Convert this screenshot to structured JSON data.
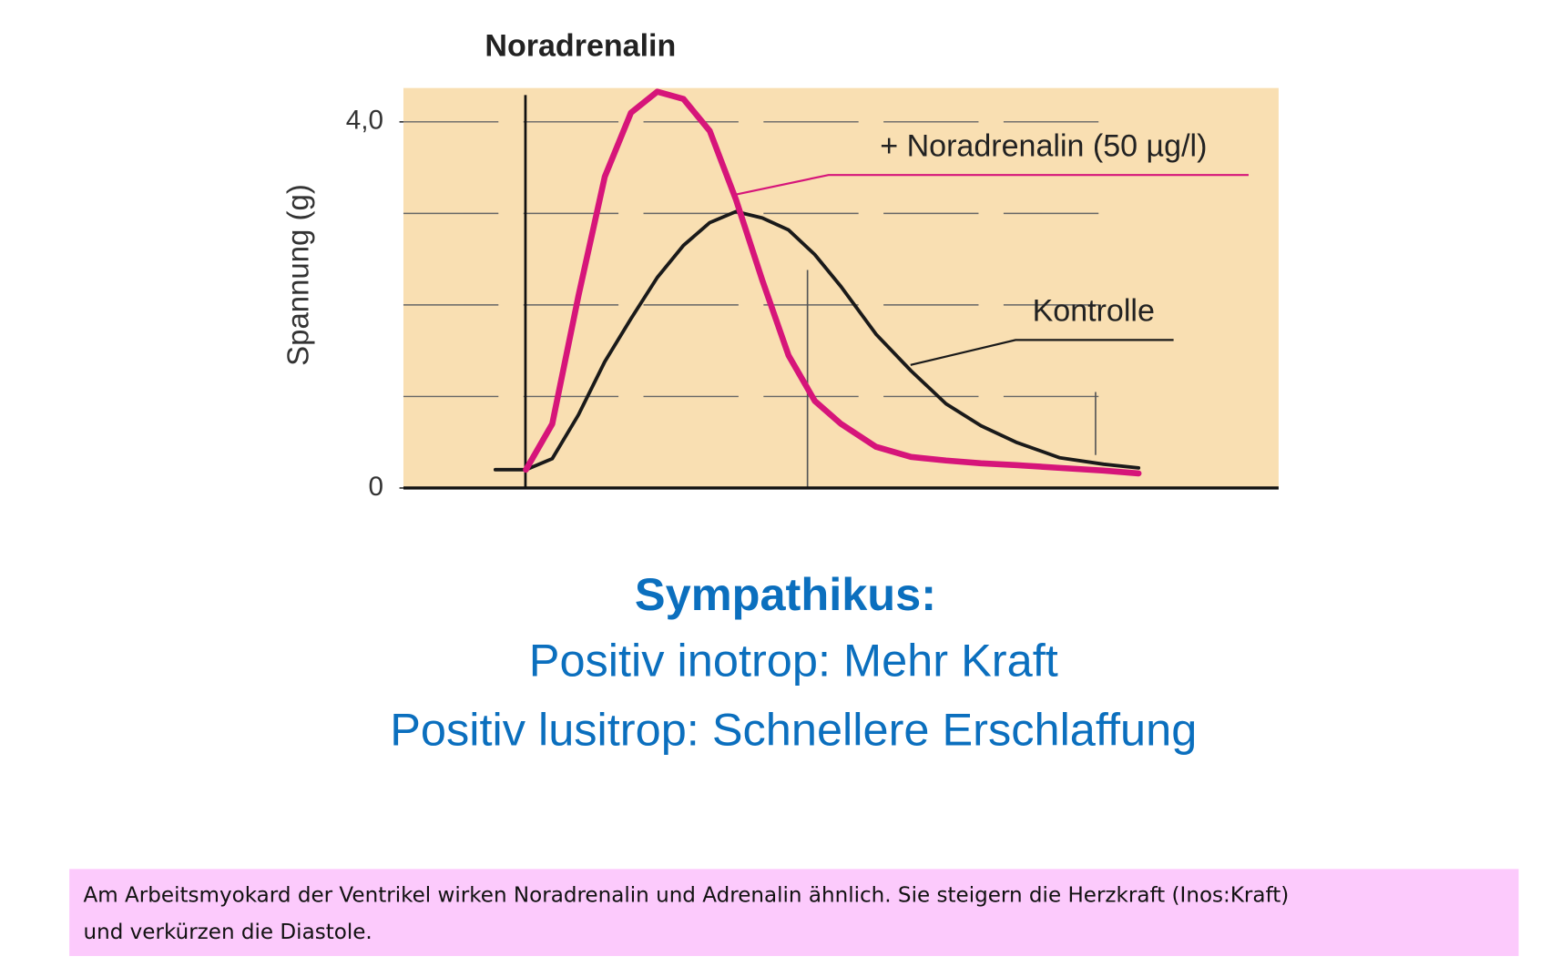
{
  "chart_data": {
    "type": "line",
    "title": "Noradrenalin",
    "ylabel": "Spannung (g)",
    "x": [
      10.5,
      14,
      17,
      20,
      23,
      26,
      29,
      32,
      35,
      38,
      41,
      44,
      47,
      50,
      54,
      58,
      62,
      66,
      70,
      75,
      80,
      84
    ],
    "xlim": [
      0,
      100
    ],
    "ylim": [
      0,
      4.37
    ],
    "yticks": [
      0,
      {
        "value": 4,
        "label": "4,0"
      }
    ],
    "grid_lines": [
      1,
      2,
      3,
      4
    ],
    "background": "#f9dfb2",
    "series": [
      {
        "name": "+ Noradrenalin (50 µg/l)",
        "color": "#d6157a",
        "values": [
          null,
          0.2,
          0.7,
          2.1,
          3.4,
          4.1,
          4.33,
          4.25,
          3.9,
          3.15,
          2.27,
          1.45,
          0.95,
          0.7,
          0.45,
          0.34,
          0.3,
          0.27,
          0.25,
          0.22,
          0.19,
          0.16
        ]
      },
      {
        "name": "Kontrolle",
        "color": "#1a1a1a",
        "values": [
          0.2,
          0.2,
          0.32,
          0.8,
          1.38,
          1.85,
          2.3,
          2.65,
          2.9,
          3.02,
          2.95,
          2.82,
          2.55,
          2.2,
          1.68,
          1.28,
          0.92,
          0.68,
          0.5,
          0.33,
          0.26,
          0.22
        ]
      }
    ]
  },
  "slide": {
    "heading": "Sympathikus:",
    "lines": [
      "Positiv inotrop: Mehr Kraft",
      "Positiv lusitrop: Schnellere Erschlaffung"
    ],
    "note": [
      "Am Arbeitsmyokard der Ventrikel wirken Noradrenalin und Adrenalin ähnlich. Sie steigern die Herzkraft (Inos:Kraft)",
      "und verkürzen die Diastole."
    ]
  }
}
